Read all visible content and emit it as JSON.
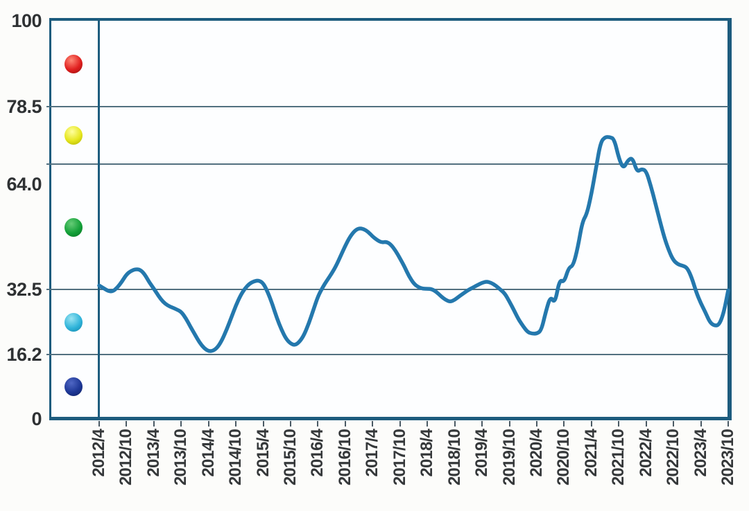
{
  "chart_data": {
    "type": "line",
    "title": "",
    "xlabel": "",
    "ylabel": "",
    "ylim": [
      0,
      100
    ],
    "grid": true,
    "y_axis": {
      "ticks": [
        {
          "label": "100",
          "value": 100
        },
        {
          "label": "78.5",
          "value": 78.5
        },
        {
          "label": "64.0",
          "value": 64.0
        },
        {
          "label": "32.5",
          "value": 32.5
        },
        {
          "label": "16.2",
          "value": 16.2
        },
        {
          "label": "0",
          "value": 0
        }
      ],
      "gridline_values": [
        78.5,
        64.0,
        32.5,
        16.2
      ]
    },
    "x_axis": {
      "start": "2012/4",
      "end": "2023/10",
      "step_months": 1,
      "tick_labels": [
        "2012/4",
        "2012/10",
        "2013/4",
        "2013/10",
        "2014/4",
        "2014/10",
        "2015/4",
        "2015/10",
        "2016/4",
        "2016/10",
        "2017/4",
        "2017/10",
        "2018/4",
        "2018/10",
        "2019/4",
        "2019/10",
        "2020/4",
        "2020/10",
        "2021/4",
        "2021/10",
        "2022/4",
        "2022/10",
        "2023/4",
        "2023/10"
      ],
      "tick_every_months": 6
    },
    "series": [
      {
        "name": "index-line",
        "color": "#2478ad",
        "monthly_values": [
          33.5,
          32.8,
          32.1,
          32.0,
          33.0,
          34.5,
          36.3,
          37.2,
          37.6,
          37.5,
          36.3,
          34.3,
          32.7,
          30.9,
          29.4,
          28.5,
          28.0,
          27.5,
          26.9,
          25.3,
          23.2,
          21.2,
          19.2,
          17.8,
          17.0,
          17.1,
          18.0,
          19.9,
          22.5,
          25.5,
          28.5,
          31.0,
          32.8,
          34.0,
          34.6,
          34.8,
          34.1,
          31.8,
          28.8,
          25.3,
          22.4,
          20.1,
          18.9,
          18.5,
          19.4,
          21.2,
          24.0,
          27.4,
          30.8,
          33.0,
          34.8,
          36.5,
          38.5,
          41.0,
          43.5,
          45.7,
          47.2,
          47.9,
          47.7,
          47.0,
          45.8,
          44.9,
          44.3,
          44.5,
          43.8,
          42.3,
          40.3,
          38.2,
          35.8,
          34.0,
          33.1,
          32.7,
          32.7,
          32.6,
          31.9,
          30.8,
          29.9,
          29.4,
          29.9,
          30.8,
          31.6,
          32.4,
          33.0,
          33.6,
          34.2,
          34.5,
          34.2,
          33.5,
          32.5,
          31.5,
          29.5,
          27.3,
          25.0,
          23.3,
          21.8,
          21.4,
          21.4,
          22.2,
          27.0,
          30.8,
          29.0,
          35.0,
          34.3,
          38.0,
          38.5,
          43.0,
          49.5,
          51.5,
          56.5,
          63.0,
          69.5,
          70.8,
          70.8,
          70.3,
          65.5,
          62.8,
          65.0,
          65.6,
          62.0,
          62.8,
          62.3,
          58.6,
          54.3,
          49.8,
          45.5,
          42.2,
          39.8,
          38.8,
          38.5,
          38.0,
          35.5,
          31.8,
          29.0,
          26.8,
          24.2,
          23.4,
          23.6,
          26.5,
          32.3
        ]
      }
    ]
  },
  "legend": {
    "balls": [
      {
        "name": "red-ball",
        "color": "#e01f1f"
      },
      {
        "name": "yellow-ball",
        "color": "#e6e61e"
      },
      {
        "name": "green-ball",
        "color": "#13a038"
      },
      {
        "name": "cyan-ball",
        "color": "#30b4da"
      },
      {
        "name": "navy-ball",
        "color": "#1d3796"
      }
    ]
  },
  "colors": {
    "frame_border": "#1d5c7e",
    "gridline": "#52707f",
    "curve": "#2478ad",
    "axis_text": "#35383a"
  }
}
